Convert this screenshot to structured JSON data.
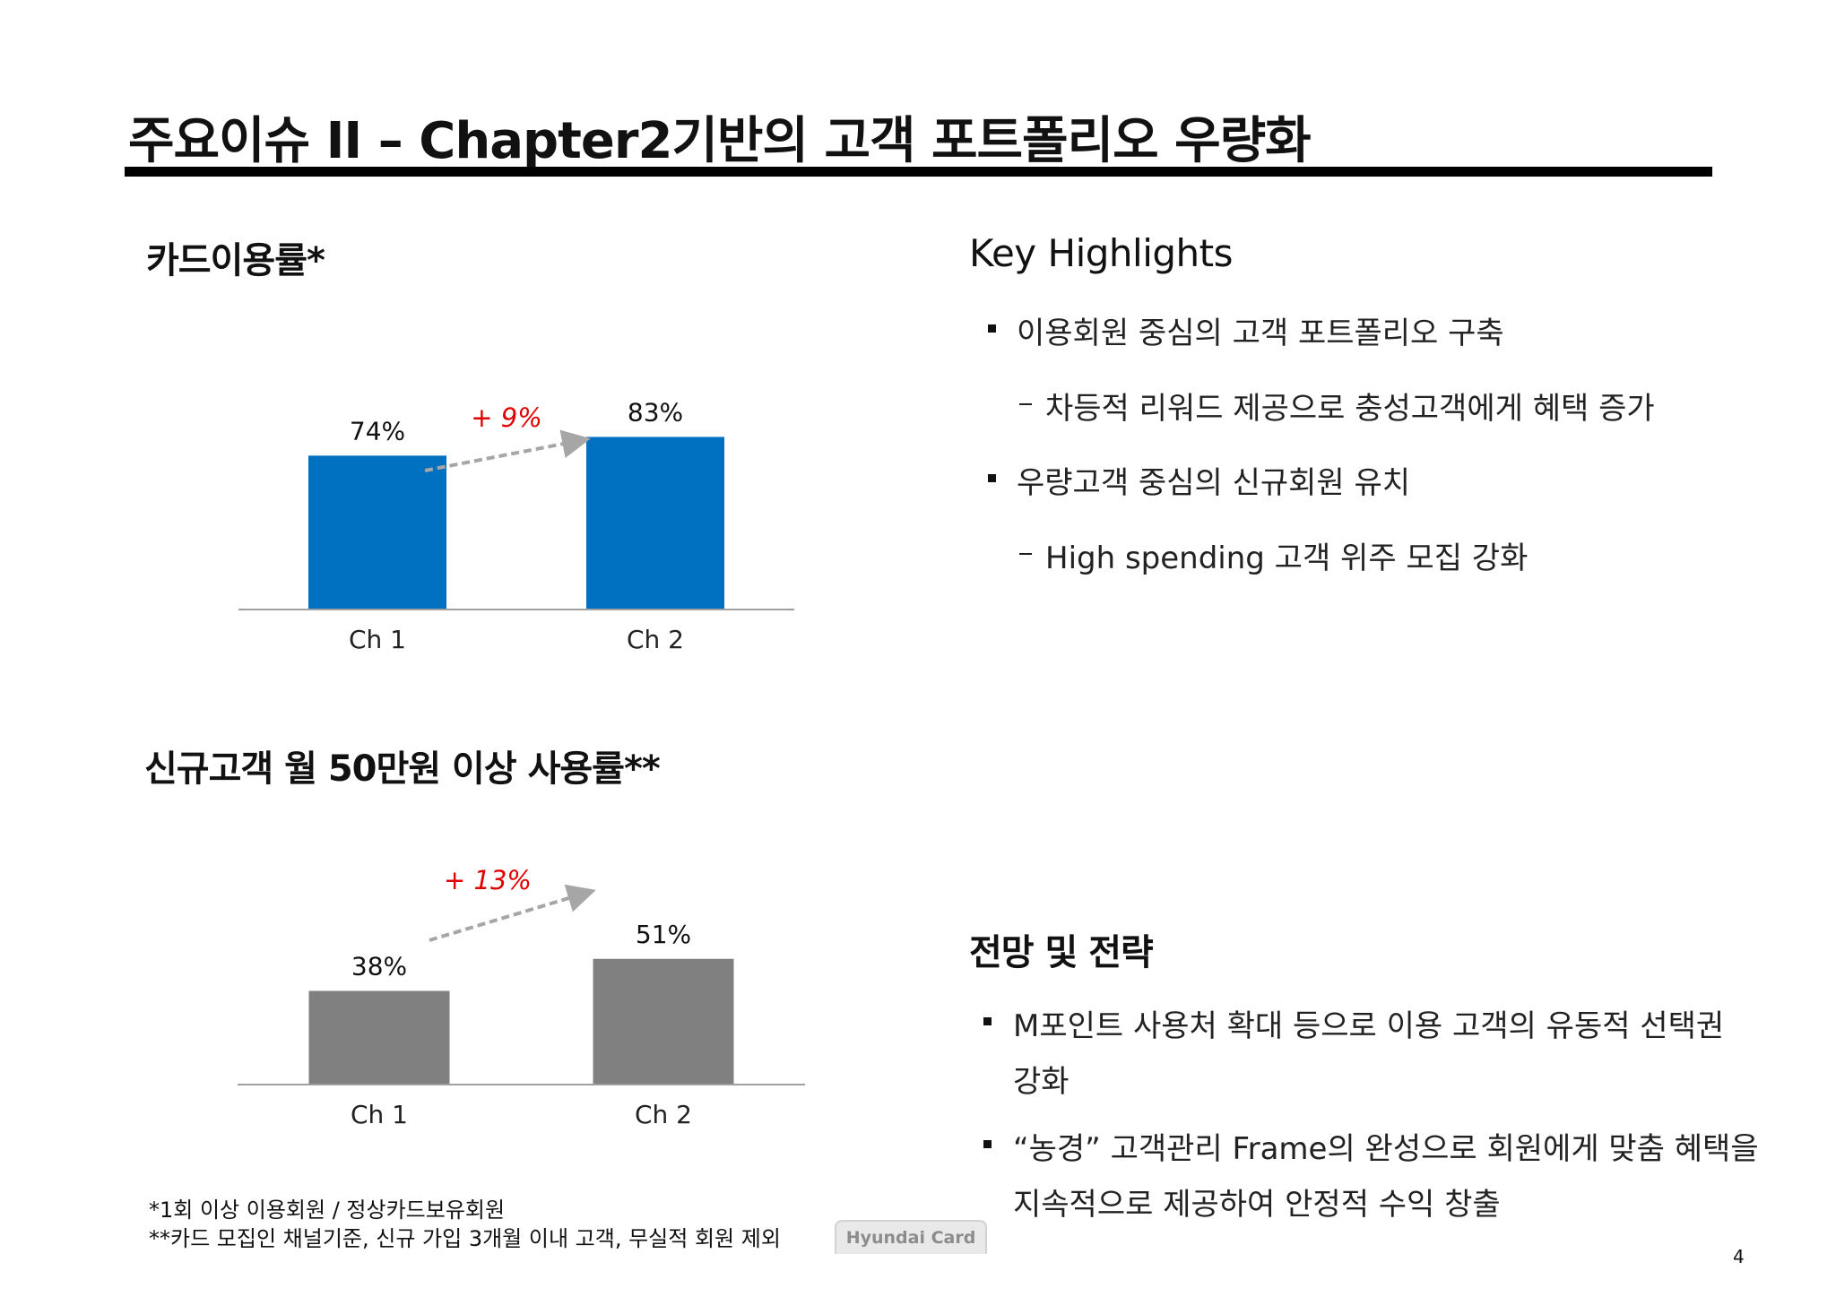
{
  "title": "주요이슈 II – Chapter2기반의 고객 포트폴리오 우량화",
  "chart1_title": "카드이용률*",
  "chart2_title": "신규고객 월 50만원 이상 사용률**",
  "chart_data": [
    {
      "type": "bar",
      "title": "카드이용률*",
      "categories": [
        "Ch 1",
        "Ch 2"
      ],
      "values": [
        74,
        83
      ],
      "value_labels": [
        "74%",
        "83%"
      ],
      "ylim": [
        0,
        100
      ],
      "color": "#0070c0",
      "annotation": "+ 9%"
    },
    {
      "type": "bar",
      "title": "신규고객 월 50만원 이상 사용률**",
      "categories": [
        "Ch 1",
        "Ch 2"
      ],
      "values": [
        38,
        51
      ],
      "value_labels": [
        "38%",
        "51%"
      ],
      "ylim": [
        0,
        100
      ],
      "color": "#808080",
      "annotation": "+ 13%"
    }
  ],
  "highlights": {
    "title": "Key Highlights",
    "items": [
      "이용회원 중심의 고객 포트폴리오 구축",
      "차등적 리워드 제공으로 충성고객에게 혜택 증가",
      "우량고객 중심의 신규회원 유치",
      "High spending 고객 위주 모집 강화"
    ]
  },
  "outlook": {
    "title": "전망 및 전략",
    "item1_line1": "M포인트 사용처 확대 등으로 이용 고객의 유동적 선택권",
    "item1_line2": "강화",
    "item2_line1": "“농경” 고객관리 Frame의  완성으로 회원에게 맞춤 혜택을",
    "item2_line2": "지속적으로 제공하여 안정적 수익 창출"
  },
  "footnotes": [
    "*1회 이상 이용회원 / 정상카드보유회원",
    "**카드 모집인 채널기준, 신규 가입 3개월 이내 고객, 무실적 회원 제외"
  ],
  "logo_text": "Hyundai Card",
  "page_number": "4",
  "colors": {
    "annotation": "#e00000",
    "arrow": "#a6a6a6",
    "axis": "#a0a0a0"
  }
}
